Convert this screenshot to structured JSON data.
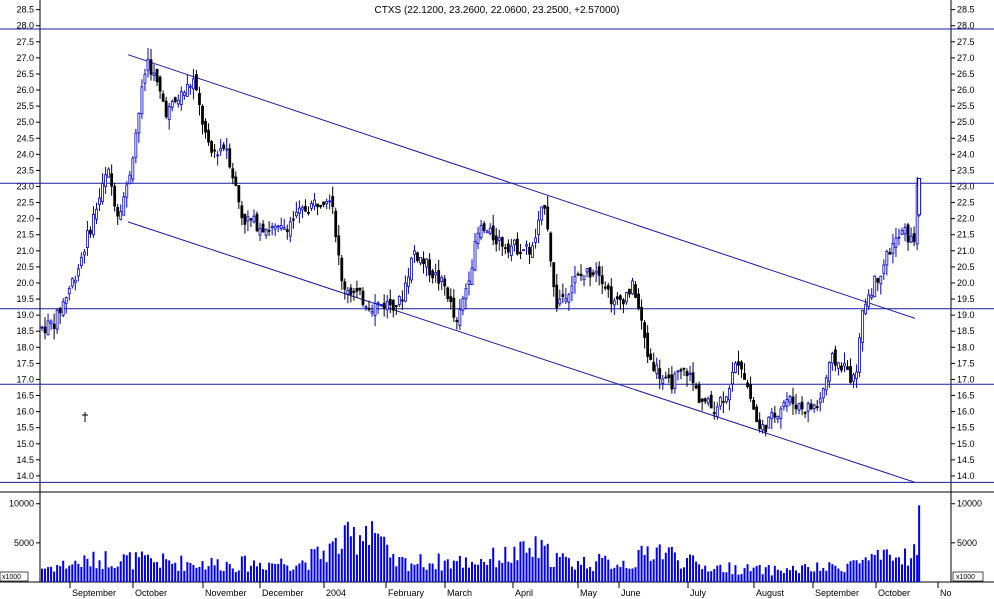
{
  "chart_data": {
    "type": "candlestick",
    "title": "CTXS (22.1200, 23.2600, 22.0600, 23.2500, +2.57000)",
    "price_axis": {
      "ylim": [
        13.5,
        28.8
      ],
      "ticks": [
        "14.0",
        "14.5",
        "15.0",
        "15.5",
        "16.0",
        "16.5",
        "17.0",
        "17.5",
        "18.0",
        "18.5",
        "19.0",
        "19.5",
        "20.0",
        "20.5",
        "21.0",
        "21.5",
        "22.0",
        "22.5",
        "23.0",
        "23.5",
        "24.0",
        "24.5",
        "25.0",
        "25.5",
        "26.0",
        "26.5",
        "27.0",
        "27.5",
        "28.0",
        "28.5"
      ]
    },
    "volume_axis": {
      "ylim": [
        0,
        11500
      ],
      "ticks": [
        "5000",
        "10000"
      ],
      "unit_label": "x1000"
    },
    "x_labels": [
      "September",
      "October",
      "November",
      "December",
      "2004",
      "February",
      "March",
      "April",
      "May",
      "June",
      "July",
      "August",
      "September",
      "October",
      "No"
    ],
    "horizontal_lines": [
      27.9,
      23.1,
      19.2,
      16.85,
      13.8
    ],
    "trend_lines": [
      {
        "name": "upper-channel",
        "from": [
          0,
          27.1
        ],
        "to": [
          1,
          18.9
        ]
      },
      {
        "name": "lower-channel",
        "from": [
          0,
          21.9
        ],
        "to": [
          1,
          13.8
        ]
      }
    ],
    "price_anchors": [
      [
        0,
        18.6
      ],
      [
        0.02,
        18.8
      ],
      [
        0.055,
        20.5
      ],
      [
        0.1,
        23.5
      ],
      [
        0.115,
        22.2
      ],
      [
        0.13,
        23.0
      ],
      [
        0.16,
        27.0
      ],
      [
        0.19,
        25.3
      ],
      [
        0.23,
        26.3
      ],
      [
        0.255,
        24.0
      ],
      [
        0.28,
        24.3
      ],
      [
        0.305,
        22.0
      ],
      [
        0.36,
        21.6
      ],
      [
        0.4,
        22.3
      ],
      [
        0.44,
        22.8
      ],
      [
        0.455,
        20.0
      ],
      [
        0.5,
        19.3
      ],
      [
        0.545,
        19.4
      ],
      [
        0.565,
        21.0
      ],
      [
        0.615,
        19.8
      ],
      [
        0.63,
        18.6
      ],
      [
        0.665,
        21.7
      ],
      [
        0.705,
        21.2
      ],
      [
        0.745,
        21.0
      ],
      [
        0.765,
        22.6
      ],
      [
        0.78,
        19.3
      ],
      [
        0.81,
        20.1
      ],
      [
        0.845,
        20.5
      ],
      [
        0.87,
        19.3
      ],
      [
        0.9,
        19.9
      ],
      [
        0.92,
        17.8
      ],
      [
        0.95,
        16.8
      ],
      [
        0.98,
        17.3
      ],
      [
        1.0,
        16.4
      ],
      [
        1.02,
        16.1
      ],
      [
        1.04,
        16.6
      ],
      [
        1.06,
        17.7
      ],
      [
        1.08,
        16.2
      ],
      [
        1.09,
        15.4
      ],
      [
        1.11,
        15.8
      ],
      [
        1.13,
        16.4
      ],
      [
        1.16,
        16.1
      ],
      [
        1.18,
        16.2
      ],
      [
        1.2,
        17.6
      ],
      [
        1.22,
        17.4
      ],
      [
        1.235,
        16.9
      ],
      [
        1.25,
        19.4
      ],
      [
        1.27,
        20.2
      ],
      [
        1.29,
        21.1
      ],
      [
        1.31,
        21.6
      ],
      [
        1.325,
        21.2
      ],
      [
        1.33,
        23.2
      ]
    ],
    "volume_anchors": [
      [
        0,
        1800
      ],
      [
        0.1,
        3000
      ],
      [
        0.2,
        2500
      ],
      [
        0.3,
        2300
      ],
      [
        0.4,
        2600
      ],
      [
        0.48,
        6000
      ],
      [
        0.5,
        8000
      ],
      [
        0.53,
        2500
      ],
      [
        0.65,
        2600
      ],
      [
        0.72,
        3500
      ],
      [
        0.75,
        4200
      ],
      [
        0.8,
        2500
      ],
      [
        0.9,
        2500
      ],
      [
        0.93,
        4500
      ],
      [
        1.0,
        2000
      ],
      [
        1.1,
        1500
      ],
      [
        1.2,
        1800
      ],
      [
        1.25,
        2800
      ],
      [
        1.3,
        3000
      ],
      [
        1.33,
        4000
      ]
    ]
  }
}
